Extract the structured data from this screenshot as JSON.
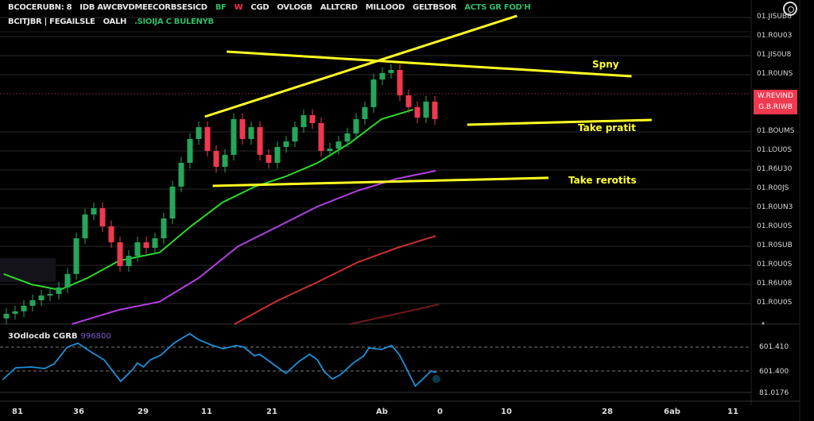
{
  "header": {
    "line1": [
      {
        "text": "BCOCERUBN: 8",
        "color": "#e6e6e6"
      },
      {
        "text": "IDB AWCBVDMEECORBSESICD",
        "color": "#e6e6e6"
      },
      {
        "text": "BF",
        "color": "#2ebd6b"
      },
      {
        "text": "W",
        "color": "#ff2d55"
      },
      {
        "text": "CGD",
        "color": "#e6e6e6"
      },
      {
        "text": "OVLOGB",
        "color": "#e6e6e6"
      },
      {
        "text": "ALLTCRD",
        "color": "#e6e6e6"
      },
      {
        "text": "MILLOOD",
        "color": "#e6e6e6"
      },
      {
        "text": "GELTBSOR",
        "color": "#e6e6e6"
      },
      {
        "text": "ACTS GR FOD'H",
        "color": "#2ebd6b"
      }
    ],
    "line2": [
      {
        "text": "BCITJBR | FEGAILSLE",
        "color": "#e6e6e6"
      },
      {
        "text": "OALH",
        "color": "#e6e6e6"
      },
      {
        "text": ".SIOIJA C BULENYB",
        "color": "#2ebd6b"
      }
    ]
  },
  "price_axis": {
    "labels": [
      "01.JISUB8",
      "01.R0U03",
      "01.JIS0U8",
      "01.R0UNS",
      "01.BOUMS",
      "01.LOU0S",
      "01.R6U30",
      "01.R00JS",
      "01.R0UN3",
      "01.R0U0S",
      "01.R0SUB",
      "01.R0U0S",
      "01.R6U08",
      "01.R0U0S"
    ],
    "current_tag": [
      "W.REVIND",
      "G.B.RIWB"
    ],
    "tag_color": "#f0384f"
  },
  "time_axis": {
    "labels": [
      "81",
      "36",
      "29",
      "11",
      "21",
      "Ab",
      "0",
      "10",
      "28",
      "6ab",
      "11"
    ]
  },
  "annotations": [
    "Spny",
    "Take pratit",
    "Take rerotits"
  ],
  "oscillator": {
    "title": "3Odlocdb CGRB",
    "value": "996800",
    "levels": [
      "601.410",
      "601.400",
      "81.0176"
    ],
    "color": "#1e90d8",
    "points": [
      [
        0.3,
        2.0
      ],
      [
        1.8,
        3.5
      ],
      [
        3.6,
        3.6
      ],
      [
        5.1,
        3.4
      ],
      [
        6.2,
        4.0
      ],
      [
        7.7,
        6.1
      ],
      [
        8.9,
        6.6
      ],
      [
        10.4,
        5.5
      ],
      [
        11.9,
        4.5
      ],
      [
        13.8,
        1.8
      ],
      [
        15.2,
        3.3
      ],
      [
        15.7,
        4.1
      ],
      [
        16.4,
        3.6
      ],
      [
        17.2,
        4.5
      ],
      [
        18.4,
        5.1
      ],
      [
        19.9,
        6.6
      ],
      [
        21.7,
        7.8
      ],
      [
        22.6,
        7.1
      ],
      [
        24.1,
        6.4
      ],
      [
        25.5,
        5.9
      ],
      [
        27,
        6.3
      ],
      [
        27.9,
        6.1
      ],
      [
        29.1,
        5.0
      ],
      [
        29.7,
        5.2
      ],
      [
        31.2,
        4.0
      ],
      [
        32.7,
        2.8
      ],
      [
        34.2,
        4.3
      ],
      [
        35.4,
        5.2
      ],
      [
        36.3,
        4.5
      ],
      [
        37.1,
        3.0
      ],
      [
        38,
        2.1
      ],
      [
        38.9,
        2.6
      ],
      [
        40.4,
        4.1
      ],
      [
        41.6,
        5.0
      ],
      [
        42.2,
        6.0
      ],
      [
        43.6,
        5.8
      ],
      [
        44.8,
        6.3
      ],
      [
        45.7,
        5.1
      ],
      [
        47.5,
        1.2
      ],
      [
        49.3,
        3.1
      ],
      [
        49.9,
        2.9
      ]
    ]
  },
  "chart_data": {
    "type": "candlestick",
    "title": "",
    "ylim": [
      0,
      17
    ],
    "candle_rule": "open = previous close; high/low extend 0.3 beyond body",
    "first_open": 0.3,
    "closes": [
      0.54,
      0.67,
      0.96,
      1.25,
      1.5,
      1.58,
      1.92,
      2.63,
      4.5,
      5.75,
      6.08,
      5.13,
      4.29,
      3.04,
      3.58,
      4.29,
      4.0,
      4.5,
      5.54,
      7.21,
      8.46,
      9.71,
      10.33,
      9.08,
      8.25,
      8.88,
      10.75,
      9.71,
      10.33,
      8.88,
      8.46,
      9.29,
      9.58,
      10.33,
      10.96,
      10.54,
      9.08,
      9.2,
      9.58,
      10.0,
      10.75,
      11.38,
      12.83,
      13.17,
      13.33,
      12.0,
      11.38,
      10.83,
      11.67,
      10.75
    ],
    "up_color": "#26a65b",
    "down_color": "#f0384f",
    "moving_averages": [
      {
        "name": "ma-fast",
        "color": "#2bd92b",
        "points": [
          [
            -0.3,
            2.63
          ],
          [
            2.9,
            2.08
          ],
          [
            6.1,
            1.79
          ],
          [
            9.3,
            2.42
          ],
          [
            12.9,
            3.33
          ],
          [
            17.5,
            3.75
          ],
          [
            21.1,
            5.13
          ],
          [
            24.7,
            6.38
          ],
          [
            28.4,
            7.21
          ],
          [
            32,
            7.75
          ],
          [
            35.6,
            8.46
          ],
          [
            39.3,
            9.5
          ],
          [
            42.9,
            10.75
          ],
          [
            46.5,
            11.25
          ]
        ]
      },
      {
        "name": "ma-mid",
        "color": "#b03fe0",
        "points": [
          [
            7.5,
            0
          ],
          [
            12.9,
            0.75
          ],
          [
            17.5,
            1.17
          ],
          [
            22,
            2.42
          ],
          [
            26.5,
            4.08
          ],
          [
            31.1,
            5.13
          ],
          [
            35.6,
            6.17
          ],
          [
            40.2,
            7.0
          ],
          [
            44.7,
            7.63
          ],
          [
            49.1,
            8.04
          ]
        ]
      },
      {
        "name": "ma-slow",
        "color": "#c8302f",
        "points": [
          [
            26.1,
            0
          ],
          [
            31.1,
            1.25
          ],
          [
            35.6,
            2.21
          ],
          [
            40.2,
            3.25
          ],
          [
            44.7,
            4.0
          ],
          [
            49.1,
            4.63
          ]
        ]
      },
      {
        "name": "ma-slowest",
        "color": "#6e1a1a",
        "points": [
          [
            39.3,
            0
          ],
          [
            44.7,
            0.54
          ],
          [
            49.5,
            1.04
          ]
        ]
      }
    ],
    "trendlines": [
      {
        "color": "#ffff22",
        "from": [
          22.7,
          10.88
        ],
        "to": [
          58.4,
          16.17
        ]
      },
      {
        "color": "#ffff22",
        "from": [
          25.2,
          14.29
        ],
        "to": [
          71.5,
          13.0
        ]
      },
      {
        "color": "#ffff22",
        "from": [
          52.7,
          10.46
        ],
        "to": [
          73.8,
          10.71
        ]
      },
      {
        "color": "#ffff22",
        "from": [
          23.6,
          7.25
        ],
        "to": [
          62,
          7.67
        ]
      }
    ]
  }
}
